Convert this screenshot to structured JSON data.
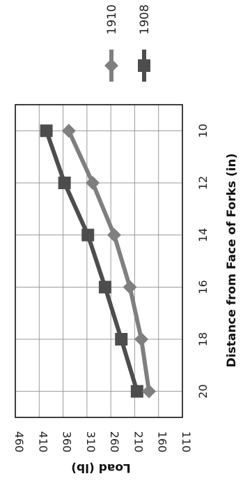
{
  "chart_data": {
    "type": "line",
    "orientation": "rotated-90",
    "xlabel": "Distance  from Face of Forks (in)",
    "ylabel": "Load (lb)",
    "x": [
      10,
      12,
      14,
      16,
      18,
      20
    ],
    "x_tick_labels": [
      "10",
      "12",
      "14",
      "16",
      "18",
      "20"
    ],
    "xlim": [
      9,
      21
    ],
    "ylim": [
      110,
      460
    ],
    "y_ticks": [
      110,
      160,
      210,
      260,
      310,
      360,
      410,
      460
    ],
    "y_tick_labels": [
      "110",
      "160",
      "210",
      "260",
      "310",
      "360",
      "410",
      "460"
    ],
    "grid": true,
    "legend_position": "top-right",
    "series": [
      {
        "name": "1908",
        "marker": "square",
        "color": "#4d4d4d",
        "values": [
          395,
          357,
          308,
          272,
          238,
          205
        ]
      },
      {
        "name": "1910",
        "marker": "diamond",
        "color": "#7f7f7f",
        "values": [
          348,
          298,
          253,
          220,
          196,
          180
        ]
      }
    ],
    "legend_order": [
      "1910",
      "1908"
    ]
  }
}
